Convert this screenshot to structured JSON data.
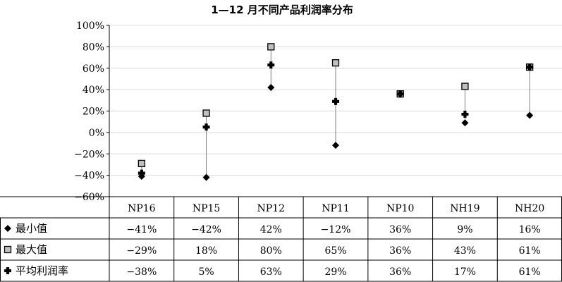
{
  "chart_data": {
    "type": "high-low",
    "title": "1—12 月不同产品利润率分布",
    "categories": [
      "NP16",
      "NP15",
      "NP12",
      "NP11",
      "NP10",
      "NH19",
      "NH20"
    ],
    "ylim": [
      -60,
      100
    ],
    "yticks": [
      -60,
      -40,
      -20,
      0,
      20,
      40,
      60,
      80,
      100
    ],
    "ytick_labels": [
      "−60%",
      "−40%",
      "−20%",
      "0%",
      "20%",
      "40%",
      "60%",
      "80%",
      "100%"
    ],
    "grid": true,
    "series": [
      {
        "name": "最小值",
        "marker": "diamond",
        "values": [
          -41,
          -42,
          42,
          -12,
          36,
          9,
          16
        ],
        "labels": [
          "−41%",
          "−42%",
          "42%",
          "−12%",
          "36%",
          "9%",
          "16%"
        ]
      },
      {
        "name": "最大值",
        "marker": "square",
        "values": [
          -29,
          18,
          80,
          65,
          36,
          43,
          61
        ],
        "labels": [
          "−29%",
          "18%",
          "80%",
          "65%",
          "36%",
          "43%",
          "61%"
        ]
      },
      {
        "name": "平均利润率",
        "marker": "cross",
        "values": [
          -38,
          5,
          63,
          29,
          36,
          17,
          61
        ],
        "labels": [
          "−38%",
          "5%",
          "63%",
          "29%",
          "36%",
          "17%",
          "61%"
        ]
      }
    ],
    "legend": "data-table"
  },
  "colors": {
    "gridline": "#d9d9d9",
    "axis": "#000000",
    "range_line": "#808080",
    "diamond": "#000000",
    "square_fill": "#c0c0c0",
    "cross": "#000000"
  }
}
